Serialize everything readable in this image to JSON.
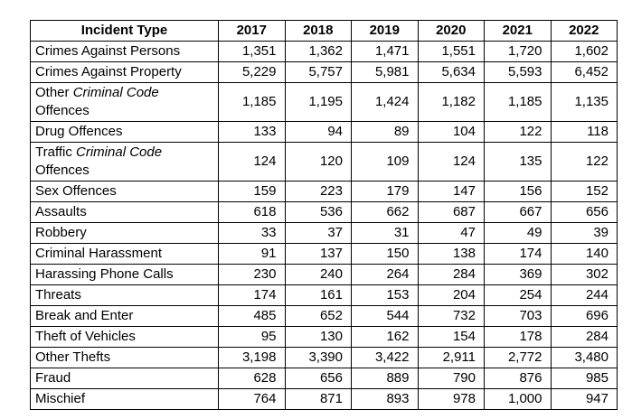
{
  "table": {
    "columns": [
      "Incident Type",
      "2017",
      "2018",
      "2019",
      "2020",
      "2021",
      "2022"
    ],
    "rows": [
      {
        "label": [
          {
            "t": "Crimes Against Persons",
            "i": false
          }
        ],
        "values": [
          "1,351",
          "1,362",
          "1,471",
          "1,551",
          "1,720",
          "1,602"
        ]
      },
      {
        "label": [
          {
            "t": "Crimes Against Property",
            "i": false
          }
        ],
        "values": [
          "5,229",
          "5,757",
          "5,981",
          "5,634",
          "5,593",
          "6,452"
        ]
      },
      {
        "label": [
          {
            "t": "Other ",
            "i": false
          },
          {
            "t": "Criminal Code",
            "i": true
          },
          {
            "t": " Offences",
            "i": false
          }
        ],
        "values": [
          "1,185",
          "1,195",
          "1,424",
          "1,182",
          "1,185",
          "1,135"
        ]
      },
      {
        "label": [
          {
            "t": "Drug Offences",
            "i": false
          }
        ],
        "values": [
          "133",
          "94",
          "89",
          "104",
          "122",
          "118"
        ]
      },
      {
        "label": [
          {
            "t": "Traffic ",
            "i": false
          },
          {
            "t": "Criminal Code",
            "i": true
          },
          {
            "t": " Offences",
            "i": false
          }
        ],
        "values": [
          "124",
          "120",
          "109",
          "124",
          "135",
          "122"
        ]
      },
      {
        "label": [
          {
            "t": "Sex Offences",
            "i": false
          }
        ],
        "values": [
          "159",
          "223",
          "179",
          "147",
          "156",
          "152"
        ]
      },
      {
        "label": [
          {
            "t": "Assaults",
            "i": false
          }
        ],
        "values": [
          "618",
          "536",
          "662",
          "687",
          "667",
          "656"
        ]
      },
      {
        "label": [
          {
            "t": "Robbery",
            "i": false
          }
        ],
        "values": [
          "33",
          "37",
          "31",
          "47",
          "49",
          "39"
        ]
      },
      {
        "label": [
          {
            "t": "Criminal Harassment",
            "i": false
          }
        ],
        "values": [
          "91",
          "137",
          "150",
          "138",
          "174",
          "140"
        ]
      },
      {
        "label": [
          {
            "t": "Harassing Phone Calls",
            "i": false
          }
        ],
        "values": [
          "230",
          "240",
          "264",
          "284",
          "369",
          "302"
        ]
      },
      {
        "label": [
          {
            "t": "Threats",
            "i": false
          }
        ],
        "values": [
          "174",
          "161",
          "153",
          "204",
          "254",
          "244"
        ]
      },
      {
        "label": [
          {
            "t": "Break and Enter",
            "i": false
          }
        ],
        "values": [
          "485",
          "652",
          "544",
          "732",
          "703",
          "696"
        ]
      },
      {
        "label": [
          {
            "t": "Theft of Vehicles",
            "i": false
          }
        ],
        "values": [
          "95",
          "130",
          "162",
          "154",
          "178",
          "284"
        ]
      },
      {
        "label": [
          {
            "t": "Other Thefts",
            "i": false
          }
        ],
        "values": [
          "3,198",
          "3,390",
          "3,422",
          "2,911",
          "2,772",
          "3,480"
        ]
      },
      {
        "label": [
          {
            "t": "Fraud",
            "i": false
          }
        ],
        "values": [
          "628",
          "656",
          "889",
          "790",
          "876",
          "985"
        ]
      },
      {
        "label": [
          {
            "t": "Mischief",
            "i": false
          }
        ],
        "values": [
          "764",
          "871",
          "893",
          "978",
          "1,000",
          "947"
        ]
      }
    ]
  },
  "chart_data": {
    "type": "table",
    "categories": [
      "2017",
      "2018",
      "2019",
      "2020",
      "2021",
      "2022"
    ],
    "row_header_label": "Incident Type",
    "series": [
      {
        "name": "Crimes Against Persons",
        "values": [
          1351,
          1362,
          1471,
          1551,
          1720,
          1602
        ]
      },
      {
        "name": "Crimes Against Property",
        "values": [
          5229,
          5757,
          5981,
          5634,
          5593,
          6452
        ]
      },
      {
        "name": "Other Criminal Code Offences",
        "values": [
          1185,
          1195,
          1424,
          1182,
          1185,
          1135
        ]
      },
      {
        "name": "Drug Offences",
        "values": [
          133,
          94,
          89,
          104,
          122,
          118
        ]
      },
      {
        "name": "Traffic Criminal Code Offences",
        "values": [
          124,
          120,
          109,
          124,
          135,
          122
        ]
      },
      {
        "name": "Sex Offences",
        "values": [
          159,
          223,
          179,
          147,
          156,
          152
        ]
      },
      {
        "name": "Assaults",
        "values": [
          618,
          536,
          662,
          687,
          667,
          656
        ]
      },
      {
        "name": "Robbery",
        "values": [
          33,
          37,
          31,
          47,
          49,
          39
        ]
      },
      {
        "name": "Criminal Harassment",
        "values": [
          91,
          137,
          150,
          138,
          174,
          140
        ]
      },
      {
        "name": "Harassing Phone Calls",
        "values": [
          230,
          240,
          264,
          284,
          369,
          302
        ]
      },
      {
        "name": "Threats",
        "values": [
          174,
          161,
          153,
          204,
          254,
          244
        ]
      },
      {
        "name": "Break and Enter",
        "values": [
          485,
          652,
          544,
          732,
          703,
          696
        ]
      },
      {
        "name": "Theft of Vehicles",
        "values": [
          95,
          130,
          162,
          154,
          178,
          284
        ]
      },
      {
        "name": "Other Thefts",
        "values": [
          3198,
          3390,
          3422,
          2911,
          2772,
          3480
        ]
      },
      {
        "name": "Fraud",
        "values": [
          628,
          656,
          889,
          790,
          876,
          985
        ]
      },
      {
        "name": "Mischief",
        "values": [
          764,
          871,
          893,
          978,
          1000,
          947
        ]
      }
    ],
    "layout": {
      "grid": true,
      "header_bold": true,
      "numbers_aligned": "right",
      "border_color": "#000000",
      "background_color": "#ffffff",
      "text_color": "#000000"
    }
  }
}
